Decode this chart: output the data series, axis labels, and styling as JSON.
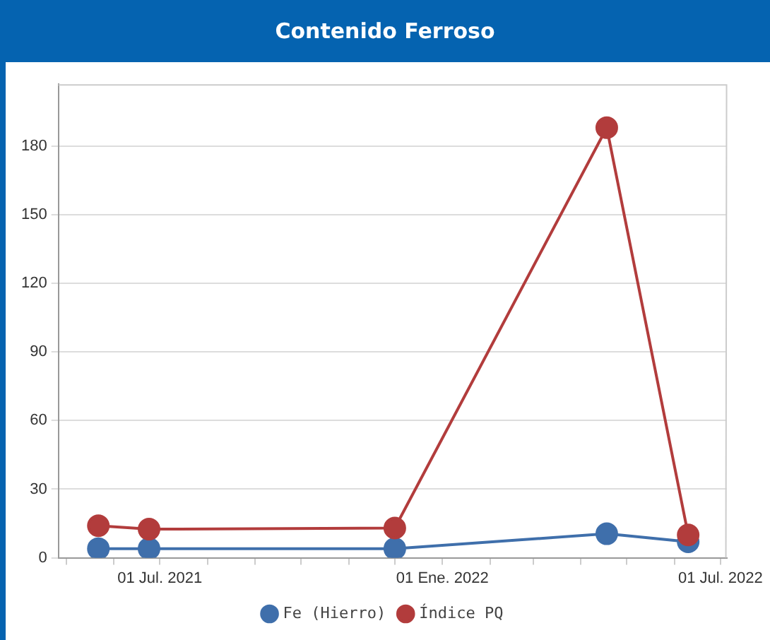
{
  "chart_data": {
    "type": "line",
    "title": "Contenido Ferroso",
    "x": [
      "2021-05-22",
      "2021-06-24",
      "2021-12-01",
      "2022-04-18",
      "2022-06-10"
    ],
    "series": [
      {
        "name": "Fe (Hierro)",
        "color": "#3f6fab",
        "values": [
          4,
          4,
          4,
          10.5,
          7
        ]
      },
      {
        "name": "Índice PQ",
        "color": "#b23c3c",
        "values": [
          14,
          12.5,
          13,
          188,
          10
        ]
      }
    ],
    "xlim": [
      "2021-04-26",
      "2022-07-05"
    ],
    "xticks": [
      {
        "value": "2021-05-01",
        "label": null
      },
      {
        "value": "2021-06-01",
        "label": null
      },
      {
        "value": "2021-07-01",
        "label": "01 Jul. 2021"
      },
      {
        "value": "2021-08-01",
        "label": null
      },
      {
        "value": "2021-09-01",
        "label": null
      },
      {
        "value": "2021-10-01",
        "label": null
      },
      {
        "value": "2021-11-01",
        "label": null
      },
      {
        "value": "2021-12-01",
        "label": null
      },
      {
        "value": "2022-01-01",
        "label": "01 Ene. 2022"
      },
      {
        "value": "2022-02-01",
        "label": null
      },
      {
        "value": "2022-03-01",
        "label": null
      },
      {
        "value": "2022-04-01",
        "label": null
      },
      {
        "value": "2022-05-01",
        "label": null
      },
      {
        "value": "2022-06-01",
        "label": null
      },
      {
        "value": "2022-07-01",
        "label": "01 Jul. 2022"
      }
    ],
    "ylim": [
      0,
      207
    ],
    "yticks": [
      0,
      30,
      60,
      90,
      120,
      150,
      180
    ],
    "grid": "y",
    "legend": "bottom",
    "marker": "circle",
    "line_style": "solid"
  }
}
